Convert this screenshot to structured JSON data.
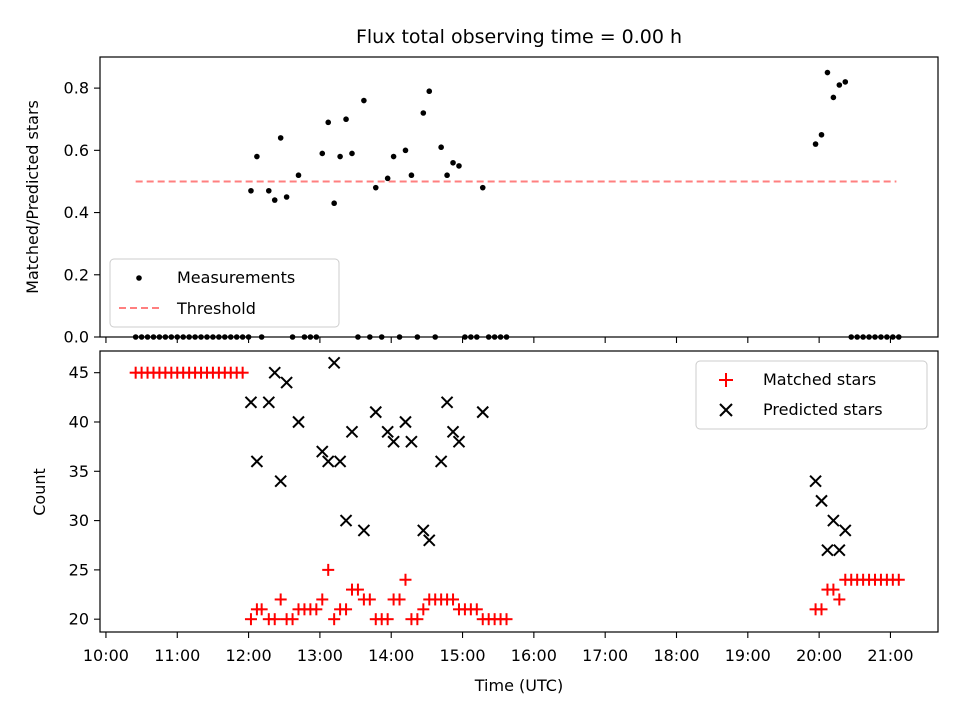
{
  "chart_data": [
    {
      "type": "scatter",
      "title": "Flux total observing time = 0.00 h",
      "xlabel": "",
      "ylabel": "Matched/Predicted stars",
      "xlim": [
        "09:55",
        "21:40"
      ],
      "ylim": [
        0,
        0.9
      ],
      "yticks": [
        "0.0",
        "0.2",
        "0.4",
        "0.6",
        "0.8"
      ],
      "grid": false,
      "legend": "lower-left",
      "series": [
        {
          "name": "Measurements",
          "color": "#000000",
          "marker": "dot",
          "points": [
            [
              "10:25",
              0
            ],
            [
              "10:30",
              0
            ],
            [
              "10:35",
              0
            ],
            [
              "10:40",
              0
            ],
            [
              "10:45",
              0
            ],
            [
              "10:50",
              0
            ],
            [
              "10:55",
              0
            ],
            [
              "11:00",
              0
            ],
            [
              "11:05",
              0
            ],
            [
              "11:10",
              0
            ],
            [
              "11:15",
              0
            ],
            [
              "11:20",
              0
            ],
            [
              "11:25",
              0
            ],
            [
              "11:30",
              0
            ],
            [
              "11:35",
              0
            ],
            [
              "11:40",
              0
            ],
            [
              "11:45",
              0
            ],
            [
              "11:50",
              0
            ],
            [
              "11:55",
              0
            ],
            [
              "12:00",
              0
            ],
            [
              "12:02",
              0.47
            ],
            [
              "12:07",
              0.58
            ],
            [
              "12:11",
              0
            ],
            [
              "12:17",
              0.47
            ],
            [
              "12:22",
              0.44
            ],
            [
              "12:27",
              0.64
            ],
            [
              "12:32",
              0.45
            ],
            [
              "12:37",
              0
            ],
            [
              "12:42",
              0.52
            ],
            [
              "12:47",
              0
            ],
            [
              "12:52",
              0
            ],
            [
              "12:57",
              0
            ],
            [
              "13:02",
              0.59
            ],
            [
              "13:07",
              0.69
            ],
            [
              "13:12",
              0.43
            ],
            [
              "13:17",
              0.58
            ],
            [
              "13:22",
              0.7
            ],
            [
              "13:27",
              0.59
            ],
            [
              "13:32",
              0
            ],
            [
              "13:37",
              0.76
            ],
            [
              "13:42",
              0
            ],
            [
              "13:47",
              0.48
            ],
            [
              "13:52",
              0
            ],
            [
              "13:57",
              0.51
            ],
            [
              "14:02",
              0.58
            ],
            [
              "14:07",
              0
            ],
            [
              "14:12",
              0.6
            ],
            [
              "14:17",
              0.52
            ],
            [
              "14:22",
              0
            ],
            [
              "14:27",
              0.72
            ],
            [
              "14:32",
              0.79
            ],
            [
              "14:37",
              0
            ],
            [
              "14:42",
              0.61
            ],
            [
              "14:47",
              0.52
            ],
            [
              "14:52",
              0.56
            ],
            [
              "14:57",
              0.55
            ],
            [
              "15:02",
              0
            ],
            [
              "15:07",
              0
            ],
            [
              "15:12",
              0
            ],
            [
              "15:17",
              0.48
            ],
            [
              "15:22",
              0
            ],
            [
              "15:27",
              0
            ],
            [
              "15:32",
              0
            ],
            [
              "15:37",
              0
            ],
            [
              "19:57",
              0.62
            ],
            [
              "20:02",
              0.65
            ],
            [
              "20:07",
              0.85
            ],
            [
              "20:12",
              0.77
            ],
            [
              "20:17",
              0.81
            ],
            [
              "20:22",
              0.82
            ],
            [
              "20:27",
              0
            ],
            [
              "20:32",
              0
            ],
            [
              "20:37",
              0
            ],
            [
              "20:42",
              0
            ],
            [
              "20:47",
              0
            ],
            [
              "20:52",
              0
            ],
            [
              "20:57",
              0
            ],
            [
              "21:02",
              0
            ],
            [
              "21:07",
              0
            ]
          ]
        },
        {
          "name": "Threshold",
          "color": "#ff7f7f",
          "style": "dashed",
          "from": "10:25",
          "to": "21:05",
          "value": 0.5
        }
      ]
    },
    {
      "type": "scatter",
      "title": "",
      "xlabel": "Time (UTC)",
      "ylabel": "Count",
      "xlim": [
        "09:55",
        "21:40"
      ],
      "ylim": [
        18.7,
        47.2
      ],
      "yticks": [
        "20",
        "25",
        "30",
        "35",
        "40",
        "45"
      ],
      "xticks": [
        "10:00",
        "11:00",
        "12:00",
        "13:00",
        "14:00",
        "15:00",
        "16:00",
        "17:00",
        "18:00",
        "19:00",
        "20:00",
        "21:00"
      ],
      "grid": false,
      "legend": "top-right",
      "series": [
        {
          "name": "Matched stars",
          "color": "#ff0000",
          "marker": "plus",
          "points": [
            [
              "10:25",
              45
            ],
            [
              "10:30",
              45
            ],
            [
              "10:35",
              45
            ],
            [
              "10:40",
              45
            ],
            [
              "10:45",
              45
            ],
            [
              "10:50",
              45
            ],
            [
              "10:55",
              45
            ],
            [
              "11:00",
              45
            ],
            [
              "11:05",
              45
            ],
            [
              "11:10",
              45
            ],
            [
              "11:15",
              45
            ],
            [
              "11:20",
              45
            ],
            [
              "11:25",
              45
            ],
            [
              "11:30",
              45
            ],
            [
              "11:35",
              45
            ],
            [
              "11:40",
              45
            ],
            [
              "11:45",
              45
            ],
            [
              "11:50",
              45
            ],
            [
              "11:55",
              45
            ],
            [
              "12:02",
              20
            ],
            [
              "12:07",
              21
            ],
            [
              "12:11",
              21
            ],
            [
              "12:17",
              20
            ],
            [
              "12:22",
              20
            ],
            [
              "12:27",
              22
            ],
            [
              "12:32",
              20
            ],
            [
              "12:37",
              20
            ],
            [
              "12:42",
              21
            ],
            [
              "12:47",
              21
            ],
            [
              "12:52",
              21
            ],
            [
              "12:57",
              21
            ],
            [
              "13:02",
              22
            ],
            [
              "13:07",
              25
            ],
            [
              "13:12",
              20
            ],
            [
              "13:17",
              21
            ],
            [
              "13:22",
              21
            ],
            [
              "13:27",
              23
            ],
            [
              "13:32",
              23
            ],
            [
              "13:37",
              22
            ],
            [
              "13:42",
              22
            ],
            [
              "13:47",
              20
            ],
            [
              "13:52",
              20
            ],
            [
              "13:57",
              20
            ],
            [
              "14:02",
              22
            ],
            [
              "14:07",
              22
            ],
            [
              "14:12",
              24
            ],
            [
              "14:17",
              20
            ],
            [
              "14:22",
              20
            ],
            [
              "14:27",
              21
            ],
            [
              "14:32",
              22
            ],
            [
              "14:37",
              22
            ],
            [
              "14:42",
              22
            ],
            [
              "14:47",
              22
            ],
            [
              "14:52",
              22
            ],
            [
              "14:57",
              21
            ],
            [
              "15:02",
              21
            ],
            [
              "15:07",
              21
            ],
            [
              "15:12",
              21
            ],
            [
              "15:17",
              20
            ],
            [
              "15:22",
              20
            ],
            [
              "15:27",
              20
            ],
            [
              "15:32",
              20
            ],
            [
              "15:37",
              20
            ],
            [
              "19:57",
              21
            ],
            [
              "20:02",
              21
            ],
            [
              "20:07",
              23
            ],
            [
              "20:12",
              23
            ],
            [
              "20:17",
              22
            ],
            [
              "20:22",
              24
            ],
            [
              "20:27",
              24
            ],
            [
              "20:32",
              24
            ],
            [
              "20:37",
              24
            ],
            [
              "20:42",
              24
            ],
            [
              "20:47",
              24
            ],
            [
              "20:52",
              24
            ],
            [
              "20:57",
              24
            ],
            [
              "21:02",
              24
            ],
            [
              "21:07",
              24
            ]
          ]
        },
        {
          "name": "Predicted stars",
          "color": "#000000",
          "marker": "x",
          "points": [
            [
              "12:02",
              42
            ],
            [
              "12:07",
              36
            ],
            [
              "12:17",
              42
            ],
            [
              "12:22",
              45
            ],
            [
              "12:27",
              34
            ],
            [
              "12:32",
              44
            ],
            [
              "12:42",
              40
            ],
            [
              "13:02",
              37
            ],
            [
              "13:07",
              36
            ],
            [
              "13:12",
              46
            ],
            [
              "13:17",
              36
            ],
            [
              "13:22",
              30
            ],
            [
              "13:27",
              39
            ],
            [
              "13:37",
              29
            ],
            [
              "13:47",
              41
            ],
            [
              "13:57",
              39
            ],
            [
              "14:02",
              38
            ],
            [
              "14:12",
              40
            ],
            [
              "14:17",
              38
            ],
            [
              "14:27",
              29
            ],
            [
              "14:32",
              28
            ],
            [
              "14:42",
              36
            ],
            [
              "14:47",
              42
            ],
            [
              "14:52",
              39
            ],
            [
              "14:57",
              38
            ],
            [
              "15:17",
              41
            ],
            [
              "19:57",
              34
            ],
            [
              "20:02",
              32
            ],
            [
              "20:07",
              27
            ],
            [
              "20:12",
              30
            ],
            [
              "20:17",
              27
            ],
            [
              "20:22",
              29
            ]
          ]
        }
      ]
    }
  ]
}
